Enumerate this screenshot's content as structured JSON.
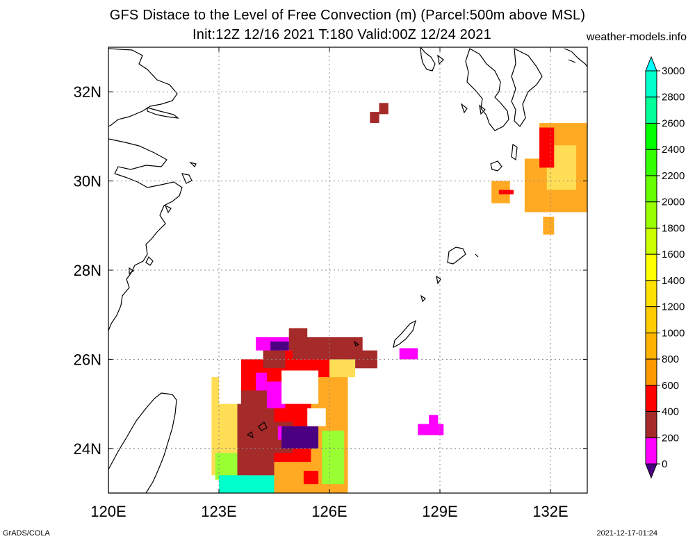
{
  "title": {
    "line1": "GFS Distace to the Level of Free Convection (m) (Parcel:500m above MSL)",
    "line2": "Init:12Z 12/16 2021 T:180 Valid:00Z 12/24 2021",
    "site": "weather-models.info"
  },
  "footer": {
    "left": "GrADS/COLA",
    "right": "2021-12-17-01:24"
  },
  "map": {
    "lon_range": [
      120,
      133
    ],
    "lat_range": [
      23,
      33
    ],
    "lon_ticks": [
      {
        "value": 120,
        "label": "120E"
      },
      {
        "value": 123,
        "label": "123E"
      },
      {
        "value": 126,
        "label": "126E"
      },
      {
        "value": 129,
        "label": "129E"
      },
      {
        "value": 132,
        "label": "132E"
      }
    ],
    "lat_ticks": [
      {
        "value": 24,
        "label": "24N"
      },
      {
        "value": 26,
        "label": "26N"
      },
      {
        "value": 28,
        "label": "28N"
      },
      {
        "value": 30,
        "label": "30N"
      },
      {
        "value": 32,
        "label": "32N"
      }
    ],
    "grid": "dotted"
  },
  "colorbar": {
    "levels": [
      "0",
      "200",
      "400",
      "600",
      "800",
      "1000",
      "1200",
      "1400",
      "1600",
      "1800",
      "2000",
      "2200",
      "2400",
      "2600",
      "2800",
      "3000"
    ],
    "colors": [
      "#4b0082",
      "#ff00ff",
      "#a52a2a",
      "#ff0000",
      "#ff9900",
      "#ffb300",
      "#ffcc00",
      "#ffe000",
      "#ffff00",
      "#ccff00",
      "#99ff00",
      "#66ff00",
      "#33ff00",
      "#00ff00",
      "#00ff99",
      "#00ffcc",
      "#00ffff"
    ]
  },
  "fields": [
    {
      "level": "800",
      "color": "#ffaa22",
      "cells": [
        [
          131.3,
          29.3,
          1.7,
          1.2
        ],
        [
          131.7,
          30.5,
          1.3,
          0.8
        ],
        [
          130.4,
          29.5,
          0.5,
          0.5
        ],
        [
          131.8,
          28.8,
          0.3,
          0.4
        ],
        [
          123.8,
          23.0,
          2.7,
          2.9
        ]
      ]
    },
    {
      "level": "1200",
      "color": "#ffdd55",
      "cells": [
        [
          131.9,
          29.8,
          0.8,
          1.0
        ],
        [
          122.8,
          23.4,
          1.0,
          2.2
        ],
        [
          125.1,
          25.6,
          1.6,
          0.6
        ]
      ]
    },
    {
      "level": "2000",
      "color": "#99ff33",
      "cells": [
        [
          125.8,
          23.2,
          0.6,
          1.2
        ],
        [
          122.9,
          23.3,
          0.8,
          0.6
        ]
      ]
    },
    {
      "level": "2800",
      "color": "#00ffcc",
      "cells": [
        [
          123.0,
          23.0,
          1.5,
          0.4
        ]
      ]
    },
    {
      "level": "600",
      "color": "#ff0000",
      "cells": [
        [
          123.6,
          23.7,
          1.9,
          2.3
        ],
        [
          124.5,
          25.6,
          1.5,
          0.6
        ],
        [
          131.7,
          30.3,
          0.4,
          0.9
        ],
        [
          130.6,
          29.7,
          0.4,
          0.1
        ],
        [
          125.3,
          23.2,
          0.4,
          0.3
        ]
      ]
    },
    {
      "level": "400",
      "color": "#a52a2a",
      "cells": [
        [
          123.5,
          23.4,
          1.0,
          1.9
        ],
        [
          124.2,
          23.9,
          0.8,
          0.7
        ],
        [
          125.0,
          26.0,
          1.9,
          0.5
        ],
        [
          124.9,
          26.2,
          0.5,
          0.5
        ],
        [
          124.2,
          25.8,
          0.6,
          0.5
        ],
        [
          127.1,
          31.3,
          0.25,
          0.25
        ],
        [
          127.35,
          31.5,
          0.25,
          0.25
        ],
        [
          126.7,
          25.8,
          0.6,
          0.4
        ]
      ]
    },
    {
      "level": "200",
      "color": "#ff00ff",
      "cells": [
        [
          124.3,
          24.9,
          0.5,
          0.6
        ],
        [
          124.6,
          24.2,
          0.9,
          0.3
        ],
        [
          128.4,
          24.3,
          0.7,
          0.25
        ],
        [
          128.7,
          24.5,
          0.25,
          0.25
        ],
        [
          127.9,
          26.0,
          0.5,
          0.25
        ],
        [
          124.0,
          26.2,
          0.9,
          0.3
        ],
        [
          124.0,
          25.3,
          0.3,
          0.4
        ]
      ]
    },
    {
      "level": "0",
      "color": "#4b0082",
      "cells": [
        [
          124.7,
          24.0,
          1.0,
          0.5
        ],
        [
          124.4,
          26.2,
          0.5,
          0.2
        ]
      ]
    }
  ],
  "holes": [
    [
      124.7,
      25.0,
      1.0,
      0.75
    ],
    [
      123.0,
      25.0,
      0.6,
      1.2
    ],
    [
      125.4,
      24.5,
      0.5,
      0.4
    ]
  ]
}
